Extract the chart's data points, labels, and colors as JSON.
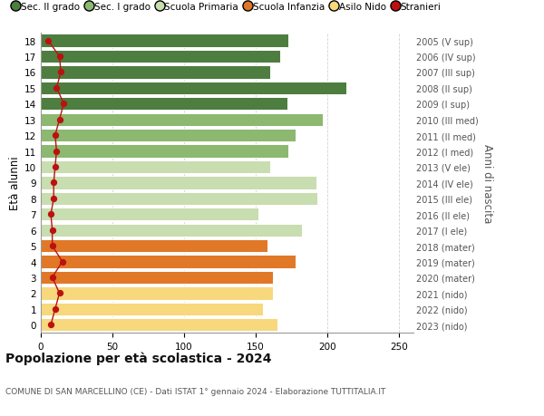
{
  "ages": [
    0,
    1,
    2,
    3,
    4,
    5,
    6,
    7,
    8,
    9,
    10,
    11,
    12,
    13,
    14,
    15,
    16,
    17,
    18
  ],
  "bar_values": [
    165,
    155,
    162,
    162,
    178,
    158,
    182,
    152,
    193,
    192,
    160,
    173,
    178,
    197,
    172,
    213,
    160,
    167,
    173
  ],
  "stranieri": [
    7,
    10,
    13,
    8,
    15,
    8,
    8,
    7,
    9,
    9,
    10,
    11,
    10,
    13,
    16,
    11,
    14,
    13,
    5
  ],
  "right_labels": [
    "2023 (nido)",
    "2022 (nido)",
    "2021 (nido)",
    "2020 (mater)",
    "2019 (mater)",
    "2018 (mater)",
    "2017 (I ele)",
    "2016 (II ele)",
    "2015 (III ele)",
    "2014 (IV ele)",
    "2013 (V ele)",
    "2012 (I med)",
    "2011 (II med)",
    "2010 (III med)",
    "2009 (I sup)",
    "2008 (II sup)",
    "2007 (III sup)",
    "2006 (IV sup)",
    "2005 (V sup)"
  ],
  "bar_colors": [
    "#f7d87c",
    "#f7d87c",
    "#f7d87c",
    "#e07828",
    "#e07828",
    "#e07828",
    "#c8ddb0",
    "#c8ddb0",
    "#c8ddb0",
    "#c8ddb0",
    "#c8ddb0",
    "#8cb870",
    "#8cb870",
    "#8cb870",
    "#4e7d40",
    "#4e7d40",
    "#4e7d40",
    "#4e7d40",
    "#4e7d40"
  ],
  "legend_labels": [
    "Sec. II grado",
    "Sec. I grado",
    "Scuola Primaria",
    "Scuola Infanzia",
    "Asilo Nido",
    "Stranieri"
  ],
  "legend_colors": [
    "#4e7d40",
    "#8cb870",
    "#c8ddb0",
    "#e07828",
    "#f7d87c",
    "#cc1111"
  ],
  "ylabel": "Età alunni",
  "right_ylabel": "Anni di nascita",
  "title": "Popolazione per età scolastica - 2024",
  "subtitle": "COMUNE DI SAN MARCELLINO (CE) - Dati ISTAT 1° gennaio 2024 - Elaborazione TUTTITALIA.IT",
  "xlim": [
    0,
    260
  ],
  "background_color": "#ffffff",
  "stranieri_color": "#bb1111",
  "stranieri_line_color": "#bb1111",
  "grid_color": "#cccccc"
}
